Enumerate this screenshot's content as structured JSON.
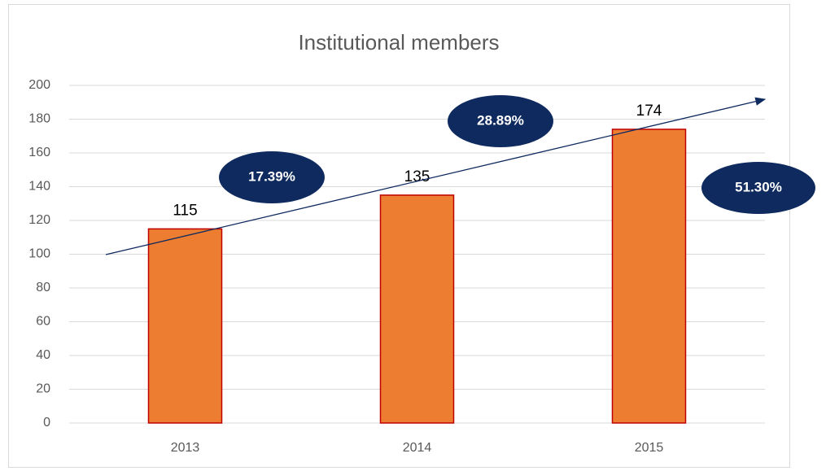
{
  "chart_data": {
    "type": "bar",
    "title": "Institutional members",
    "categories": [
      "2013",
      "2014",
      "2015"
    ],
    "values": [
      115,
      135,
      174
    ],
    "color": "#ed7d31",
    "edge_color": "#c00000",
    "ylim": [
      0,
      200
    ],
    "yticks": [
      0,
      20,
      40,
      60,
      80,
      100,
      120,
      140,
      160,
      180,
      200
    ],
    "grid": true,
    "annotations": [
      "17.39%",
      "28.89%",
      "51.30%"
    ],
    "annotation_color": "#0f2a5f"
  }
}
